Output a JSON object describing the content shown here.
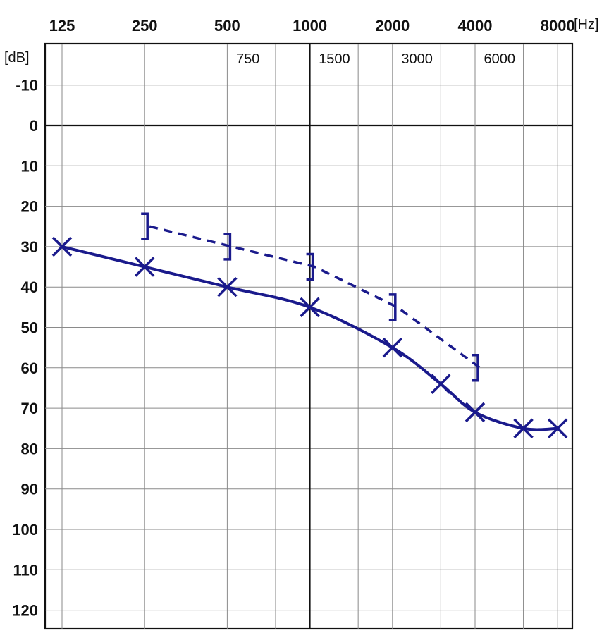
{
  "chart_data": {
    "type": "line",
    "xscale": "log2",
    "yaxis_inverted": true,
    "grid": true,
    "x_unit": "[Hz]",
    "y_unit": "[dB]",
    "x_ticks_major": [
      "125",
      "250",
      "500",
      "1000",
      "2000",
      "4000",
      "8000"
    ],
    "x_ticks_minor": [
      "750",
      "1500",
      "3000",
      "6000"
    ],
    "y_ticks": [
      "-10",
      "0",
      "10",
      "20",
      "30",
      "40",
      "50",
      "60",
      "70",
      "80",
      "90",
      "100",
      "110",
      "120"
    ],
    "ylim": [
      -20,
      125
    ],
    "series": [
      {
        "style": "solid",
        "marker": "x",
        "color": "#1a1a8c",
        "x": [
          125,
          250,
          500,
          1000,
          2000,
          3000,
          4000,
          6000,
          8000
        ],
        "y": [
          30,
          35,
          40,
          45,
          55,
          64,
          71,
          75,
          75
        ]
      },
      {
        "style": "dashed",
        "marker": "]",
        "color": "#1a1a8c",
        "x": [
          250,
          500,
          1000,
          2000,
          4000
        ],
        "y": [
          25,
          30,
          35,
          45,
          60
        ]
      }
    ]
  }
}
